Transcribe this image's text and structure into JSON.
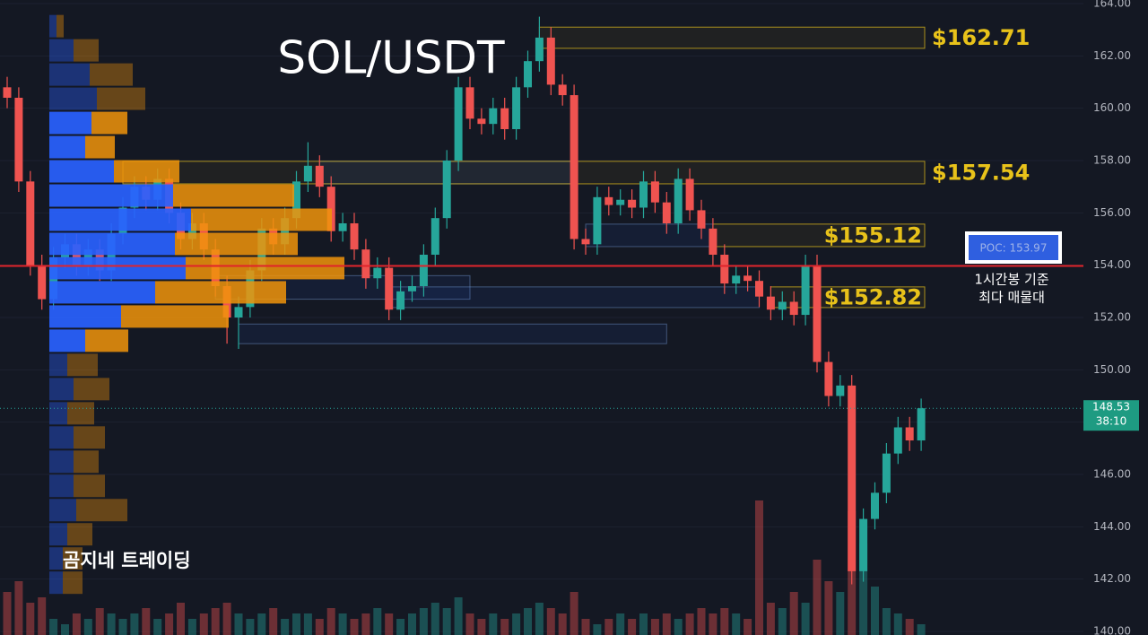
{
  "chart_data": {
    "type": "candlestick",
    "title": "SOL/USDT",
    "watermark": "곰지네 트레이딩",
    "ylim": [
      140,
      164
    ],
    "yticks": [
      {
        "value": 140,
        "label": "140.00"
      },
      {
        "value": 142,
        "label": "142.00"
      },
      {
        "value": 144,
        "label": "144.00"
      },
      {
        "value": 146,
        "label": "146.00"
      },
      {
        "value": 148,
        "label": "148.00"
      },
      {
        "value": 150,
        "label": "150.00"
      },
      {
        "value": 152,
        "label": "152.00"
      },
      {
        "value": 154,
        "label": "154.00"
      },
      {
        "value": 156,
        "label": "156.00"
      },
      {
        "value": 158,
        "label": "158.00"
      },
      {
        "value": 160,
        "label": "160.00"
      },
      {
        "value": 162,
        "label": "162.00"
      },
      {
        "value": 164,
        "label": "164.00"
      }
    ],
    "grid": true,
    "up_color": "#26a69a",
    "down_color": "#ef5350",
    "open": [
      160.8,
      160.4,
      157.2,
      154.0,
      152.7,
      154.3,
      154.8,
      154.0,
      154.6,
      153.8,
      155.2,
      156.2,
      157.0,
      156.5,
      157.3,
      156.0,
      155.0,
      155.6,
      154.6,
      153.2,
      152.0,
      152.4,
      153.8,
      155.4,
      154.8,
      155.8,
      157.2,
      157.8,
      157.0,
      155.3,
      155.6,
      154.6,
      153.5,
      153.9,
      152.3,
      153.0,
      153.2,
      154.4,
      155.8,
      158.0,
      160.8,
      159.6,
      159.4,
      160.0,
      159.2,
      160.8,
      161.8,
      162.7,
      160.9,
      160.5,
      155.0,
      154.8,
      156.6,
      156.3,
      156.5,
      156.2,
      157.2,
      156.4,
      155.6,
      157.3,
      156.1,
      155.4,
      154.4,
      153.3,
      153.6,
      153.4,
      152.8,
      152.3,
      152.6,
      152.1,
      154.0,
      150.3,
      149.0,
      149.4,
      142.3,
      144.3,
      145.3,
      146.8,
      147.8,
      147.3
    ],
    "high": [
      161.2,
      160.8,
      157.6,
      154.4,
      154.7,
      155.2,
      155.2,
      155.0,
      155.0,
      155.6,
      156.6,
      157.4,
      157.4,
      157.7,
      157.7,
      156.4,
      156.0,
      156.0,
      155.0,
      153.6,
      152.8,
      154.2,
      155.8,
      155.8,
      156.2,
      157.6,
      158.7,
      158.2,
      157.4,
      156.0,
      156.0,
      155.0,
      154.3,
      154.3,
      153.4,
      153.6,
      154.8,
      156.2,
      158.4,
      161.2,
      161.2,
      160.0,
      160.4,
      160.4,
      161.2,
      162.2,
      163.5,
      163.1,
      161.3,
      160.9,
      155.4,
      157.0,
      157.0,
      156.9,
      156.9,
      157.6,
      157.6,
      156.8,
      157.7,
      157.7,
      156.5,
      155.8,
      154.8,
      154.0,
      154.0,
      153.8,
      153.2,
      153.0,
      153.0,
      154.4,
      154.4,
      150.7,
      149.8,
      149.8,
      144.7,
      145.7,
      147.2,
      148.2,
      148.2,
      148.9
    ],
    "low": [
      160.0,
      156.8,
      153.6,
      152.3,
      152.3,
      153.9,
      153.6,
      153.6,
      153.4,
      153.4,
      154.8,
      155.8,
      156.1,
      156.1,
      155.6,
      154.6,
      154.6,
      154.2,
      152.8,
      151.0,
      150.8,
      152.0,
      153.4,
      154.4,
      154.4,
      155.4,
      156.8,
      156.6,
      154.9,
      154.9,
      154.2,
      153.1,
      153.1,
      151.9,
      151.9,
      152.6,
      152.8,
      154.0,
      155.4,
      157.6,
      159.2,
      159.0,
      159.0,
      158.8,
      158.8,
      160.4,
      161.4,
      160.5,
      160.1,
      154.6,
      154.4,
      154.4,
      155.9,
      155.9,
      155.8,
      155.8,
      156.0,
      155.2,
      155.2,
      155.7,
      155.0,
      154.0,
      152.9,
      152.9,
      153.0,
      152.4,
      151.9,
      151.9,
      151.7,
      151.7,
      149.9,
      148.6,
      148.6,
      141.8,
      141.9,
      143.9,
      144.9,
      146.4,
      146.9,
      146.9
    ],
    "close": [
      160.4,
      157.2,
      154.0,
      152.7,
      154.3,
      154.8,
      154.0,
      154.6,
      153.8,
      155.2,
      156.2,
      157.0,
      156.5,
      157.3,
      156.0,
      155.0,
      155.6,
      154.6,
      153.2,
      152.0,
      152.4,
      153.8,
      155.4,
      154.8,
      155.8,
      157.2,
      157.8,
      157.0,
      155.3,
      155.6,
      154.6,
      153.5,
      153.9,
      152.3,
      153.0,
      153.2,
      154.4,
      155.8,
      158.0,
      160.8,
      159.6,
      159.4,
      160.0,
      159.2,
      160.8,
      161.8,
      162.7,
      160.9,
      160.5,
      155.0,
      154.8,
      156.6,
      156.3,
      156.5,
      156.2,
      157.2,
      156.4,
      155.6,
      157.3,
      156.1,
      155.4,
      154.4,
      153.3,
      153.6,
      153.4,
      152.8,
      152.3,
      152.6,
      152.1,
      154.0,
      150.3,
      149.0,
      149.4,
      142.3,
      144.3,
      145.3,
      146.8,
      147.8,
      147.3,
      148.53
    ],
    "volume": [
      8,
      10,
      6,
      7,
      3,
      2,
      4,
      3,
      5,
      4,
      3,
      4,
      5,
      3,
      4,
      6,
      3,
      4,
      5,
      6,
      4,
      3,
      4,
      5,
      3,
      4,
      4,
      3,
      5,
      4,
      3,
      4,
      5,
      4,
      3,
      4,
      5,
      6,
      5,
      7,
      4,
      3,
      4,
      3,
      4,
      5,
      6,
      5,
      4,
      8,
      3,
      2,
      3,
      4,
      3,
      4,
      3,
      4,
      3,
      4,
      5,
      4,
      5,
      4,
      3,
      25,
      6,
      5,
      8,
      6,
      14,
      10,
      8,
      23,
      17,
      9,
      5,
      4,
      3,
      2
    ],
    "profile": {
      "top": 163.6,
      "row_size": 0.925,
      "buy_color": "#2962ff",
      "sell_color": "#f0940a",
      "buy": [
        8,
        27,
        45,
        53,
        47,
        40,
        72,
        138,
        158,
        140,
        152,
        118,
        80,
        40,
        20,
        27,
        20,
        27,
        27,
        27,
        30,
        20,
        15,
        15
      ],
      "sell": [
        8,
        28,
        48,
        54,
        40,
        33,
        73,
        135,
        157,
        137,
        177,
        146,
        120,
        48,
        34,
        40,
        30,
        35,
        28,
        35,
        57,
        28,
        22,
        22
      ],
      "highlight": [
        false,
        false,
        false,
        false,
        true,
        true,
        true,
        true,
        true,
        true,
        true,
        true,
        true,
        true,
        false,
        false,
        false,
        false,
        false,
        false,
        false,
        false,
        false,
        false
      ]
    },
    "zones": [
      {
        "label": "$162.71",
        "high": 163.1,
        "low": 162.29,
        "start": 46,
        "inside": false
      },
      {
        "label": "$157.54",
        "high": 157.97,
        "low": 157.11,
        "start": 10,
        "inside": false
      },
      {
        "label": "$155.12",
        "high": 155.57,
        "low": 154.71,
        "start": 61,
        "inside": true
      },
      {
        "label": "$152.82",
        "high": 153.17,
        "low": 152.38,
        "start": 66,
        "inside": true
      }
    ],
    "zone_color": "#e8c21a",
    "blue_zones": [
      {
        "high": 157.97,
        "low": 157.11,
        "start": 27,
        "end": 49
      },
      {
        "high": 155.57,
        "low": 154.71,
        "start": 50,
        "end": 61
      },
      {
        "high": 153.6,
        "low": 152.7,
        "start": 18,
        "end": 40
      },
      {
        "high": 153.17,
        "low": 152.38,
        "start": 33,
        "end": 65
      },
      {
        "high": 151.75,
        "low": 151.0,
        "start": 20,
        "end": 57
      }
    ],
    "poc": {
      "value": 153.97,
      "label": "POC: 153.97",
      "note": [
        "1시간봉 기준",
        "최다 매물대"
      ]
    },
    "last_price": 148.53,
    "countdown": "38:10"
  }
}
